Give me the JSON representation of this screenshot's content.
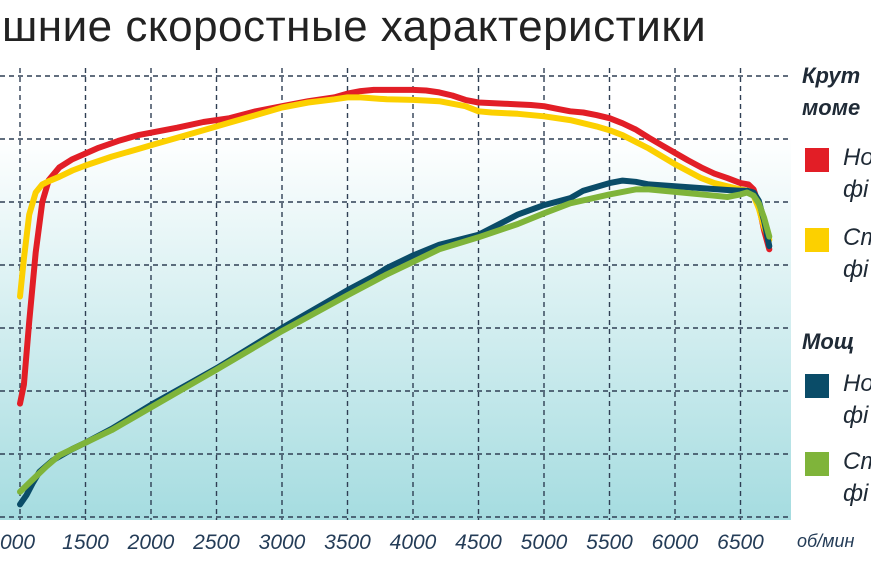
{
  "title": "шние скоростные характеристики",
  "colors": {
    "torque_new": "#e21e26",
    "torque_std": "#fcd000",
    "power_new": "#0a4c68",
    "power_std": "#7fb43a",
    "grid": "#2f3f54",
    "bg_top": "#ffffff",
    "bg_bottom": "#a5dce0"
  },
  "legend": {
    "torque_head_1": "Крут",
    "torque_head_2": "моме",
    "power_head": "Мощ",
    "torque_new_1": "Но",
    "torque_new_2": "фі",
    "torque_std_1": "Ст",
    "torque_std_2": "фі",
    "power_new_1": "Но",
    "power_new_2": "фі",
    "power_std_1": "Ст",
    "power_std_2": "фі"
  },
  "chart_data": {
    "type": "line",
    "title": "шние скоростные характеристики",
    "xlabel": "об/мин",
    "ylabel": "",
    "x_ticks": [
      "000",
      "1500",
      "2000",
      "2500",
      "3000",
      "3500",
      "4000",
      "4500",
      "5000",
      "5500",
      "6000",
      "6500"
    ],
    "xlim": [
      1000,
      6750
    ],
    "ylim": [
      0,
      7.5
    ],
    "grid": true,
    "legend_position": "right",
    "series": [
      {
        "name": "Но фі",
        "color": "#e21e26",
        "x": [
          1000,
          1030,
          1070,
          1120,
          1170,
          1220,
          1300,
          1400,
          1500,
          1600,
          1750,
          1900,
          2000,
          2200,
          2400,
          2600,
          2800,
          3000,
          3200,
          3400,
          3500,
          3600,
          3700,
          3800,
          3900,
          4000,
          4100,
          4200,
          4300,
          4400,
          4500,
          4600,
          4700,
          4800,
          4900,
          5000,
          5100,
          5200,
          5300,
          5400,
          5500,
          5600,
          5700,
          5800,
          5900,
          6000,
          6100,
          6200,
          6300,
          6400,
          6500,
          6560,
          6600,
          6640,
          6680,
          6720
        ],
        "y": [
          1.8,
          2.1,
          3.1,
          4.2,
          5.0,
          5.35,
          5.55,
          5.68,
          5.77,
          5.86,
          5.97,
          6.06,
          6.1,
          6.18,
          6.27,
          6.33,
          6.44,
          6.52,
          6.6,
          6.66,
          6.72,
          6.76,
          6.78,
          6.78,
          6.78,
          6.78,
          6.77,
          6.74,
          6.69,
          6.62,
          6.58,
          6.57,
          6.56,
          6.55,
          6.54,
          6.52,
          6.48,
          6.44,
          6.42,
          6.38,
          6.33,
          6.25,
          6.15,
          6.02,
          5.9,
          5.78,
          5.66,
          5.55,
          5.45,
          5.38,
          5.3,
          5.28,
          5.2,
          4.95,
          4.55,
          4.25
        ]
      },
      {
        "name": "Ст фі",
        "color": "#fcd000",
        "x": [
          1000,
          1030,
          1070,
          1120,
          1170,
          1220,
          1300,
          1400,
          1500,
          1700,
          1900,
          2000,
          2200,
          2400,
          2600,
          2800,
          3000,
          3200,
          3400,
          3500,
          3600,
          3800,
          4000,
          4200,
          4400,
          4500,
          4600,
          4800,
          5000,
          5200,
          5400,
          5500,
          5600,
          5800,
          6000,
          6200,
          6300,
          6400,
          6500,
          6560,
          6600,
          6640,
          6680,
          6720
        ],
        "y": [
          3.5,
          4.1,
          4.8,
          5.15,
          5.28,
          5.33,
          5.4,
          5.5,
          5.58,
          5.72,
          5.84,
          5.9,
          6.02,
          6.14,
          6.26,
          6.38,
          6.5,
          6.58,
          6.63,
          6.66,
          6.66,
          6.63,
          6.62,
          6.6,
          6.52,
          6.44,
          6.42,
          6.4,
          6.36,
          6.3,
          6.2,
          6.14,
          6.06,
          5.85,
          5.6,
          5.38,
          5.3,
          5.25,
          5.2,
          5.18,
          5.1,
          4.9,
          4.6,
          4.4
        ]
      },
      {
        "name": "Но фі",
        "color": "#0a4c68",
        "x": [
          1000,
          1050,
          1100,
          1150,
          1250,
          1400,
          1500,
          1700,
          2000,
          2500,
          3000,
          3500,
          3700,
          3800,
          4000,
          4200,
          4500,
          4800,
          5000,
          5200,
          5300,
          5500,
          5600,
          5700,
          5800,
          6000,
          6200,
          6400,
          6500,
          6550,
          6600,
          6640,
          6680,
          6720
        ],
        "y": [
          0.2,
          0.35,
          0.55,
          0.72,
          0.9,
          1.08,
          1.18,
          1.4,
          1.78,
          2.36,
          3.0,
          3.6,
          3.82,
          3.95,
          4.15,
          4.32,
          4.48,
          4.8,
          4.95,
          5.06,
          5.18,
          5.3,
          5.34,
          5.32,
          5.28,
          5.25,
          5.22,
          5.19,
          5.18,
          5.18,
          5.15,
          5.02,
          4.7,
          4.3
        ]
      },
      {
        "name": "Ст фі",
        "color": "#7fb43a",
        "x": [
          1000,
          1100,
          1200,
          1300,
          1500,
          1700,
          2000,
          2500,
          3000,
          3500,
          3800,
          4000,
          4200,
          4500,
          4800,
          5000,
          5200,
          5500,
          5700,
          5800,
          6000,
          6200,
          6300,
          6400,
          6450,
          6500,
          6550,
          6600,
          6640,
          6680,
          6720
        ],
        "y": [
          0.4,
          0.6,
          0.8,
          0.98,
          1.18,
          1.38,
          1.74,
          2.34,
          2.95,
          3.52,
          3.85,
          4.05,
          4.25,
          4.44,
          4.65,
          4.82,
          4.98,
          5.12,
          5.2,
          5.2,
          5.16,
          5.12,
          5.1,
          5.08,
          5.1,
          5.12,
          5.15,
          5.1,
          4.98,
          4.75,
          4.45
        ]
      }
    ]
  }
}
